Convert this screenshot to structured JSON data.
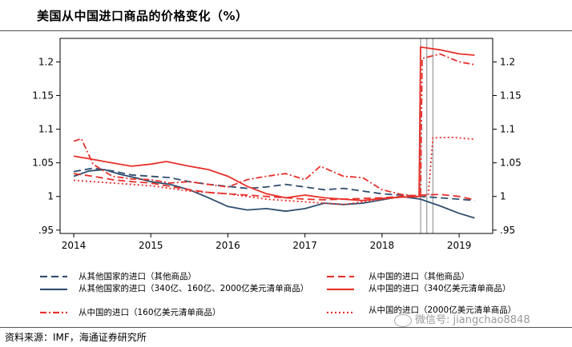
{
  "header": {
    "title": "美国从中国进口商品的价格变化（%）"
  },
  "footer": {
    "source": "资料来源：IMF，海通证券研究所",
    "watermark": "微信号: jiangchao8848"
  },
  "chart_data": {
    "type": "line",
    "title": "美国从中国进口商品的价格变化（%）",
    "x_ticks": [
      2014,
      2015,
      2016,
      2017,
      2018,
      2019
    ],
    "xlim": [
      2014,
      2019.3
    ],
    "ylim": [
      0.945,
      1.235
    ],
    "y_ticks": [
      0.95,
      1,
      1.05,
      1.1,
      1.15,
      1.2
    ],
    "y_tick_labels": [
      ".95",
      "1",
      "1.05",
      "1.1",
      "1.15",
      "1.2"
    ],
    "dual_axis": true,
    "vertical_markers": [
      2018.5,
      2018.58,
      2018.66
    ],
    "series": [
      {
        "name": "从其他国家的进口（其他商品）",
        "color": "#2f4e6f",
        "dash": "long-dash",
        "points": [
          [
            2014,
            1.037
          ],
          [
            2014.25,
            1.042
          ],
          [
            2014.5,
            1.038
          ],
          [
            2014.75,
            1.032
          ],
          [
            2015,
            1.03
          ],
          [
            2015.25,
            1.028
          ],
          [
            2015.5,
            1.022
          ],
          [
            2015.75,
            1.018
          ],
          [
            2016,
            1.015
          ],
          [
            2016.25,
            1.012
          ],
          [
            2016.5,
            1.014
          ],
          [
            2016.75,
            1.018
          ],
          [
            2017,
            1.014
          ],
          [
            2017.25,
            1.01
          ],
          [
            2017.5,
            1.012
          ],
          [
            2017.75,
            1.008
          ],
          [
            2018,
            1.004
          ],
          [
            2018.25,
            1.002
          ],
          [
            2018.5,
            1.0
          ],
          [
            2018.75,
            0.998
          ],
          [
            2019,
            0.996
          ],
          [
            2019.2,
            0.994
          ]
        ]
      },
      {
        "name": "从其他国家的进口（340亿、160亿、2000亿美元清单商品）",
        "color": "#2f4e6f",
        "dash": "solid",
        "points": [
          [
            2014,
            1.03
          ],
          [
            2014.2,
            1.038
          ],
          [
            2014.4,
            1.04
          ],
          [
            2014.6,
            1.033
          ],
          [
            2014.8,
            1.028
          ],
          [
            2015,
            1.022
          ],
          [
            2015.25,
            1.018
          ],
          [
            2015.5,
            1.01
          ],
          [
            2015.75,
            0.998
          ],
          [
            2016,
            0.985
          ],
          [
            2016.25,
            0.98
          ],
          [
            2016.5,
            0.982
          ],
          [
            2016.75,
            0.978
          ],
          [
            2017,
            0.982
          ],
          [
            2017.25,
            0.99
          ],
          [
            2017.5,
            0.988
          ],
          [
            2017.75,
            0.99
          ],
          [
            2018,
            0.995
          ],
          [
            2018.25,
            1.0
          ],
          [
            2018.5,
            0.996
          ],
          [
            2018.75,
            0.986
          ],
          [
            2019,
            0.975
          ],
          [
            2019.2,
            0.968
          ]
        ]
      },
      {
        "name": "从中国的进口（160亿美元清单商品）",
        "color": "#e8302a",
        "dash": "dash-dot",
        "points": [
          [
            2014,
            1.082
          ],
          [
            2014.1,
            1.086
          ],
          [
            2014.25,
            1.048
          ],
          [
            2014.5,
            1.03
          ],
          [
            2014.75,
            1.026
          ],
          [
            2015,
            1.025
          ],
          [
            2015.25,
            1.02
          ],
          [
            2015.5,
            1.022
          ],
          [
            2015.75,
            1.018
          ],
          [
            2016,
            1.014
          ],
          [
            2016.25,
            1.025
          ],
          [
            2016.5,
            1.03
          ],
          [
            2016.75,
            1.034
          ],
          [
            2017,
            1.025
          ],
          [
            2017.2,
            1.045
          ],
          [
            2017.5,
            1.03
          ],
          [
            2017.75,
            1.028
          ],
          [
            2018,
            1.01
          ],
          [
            2018.25,
            1.003
          ],
          [
            2018.5,
            1.0
          ],
          [
            2018.52,
            1.205
          ],
          [
            2018.75,
            1.212
          ],
          [
            2019,
            1.2
          ],
          [
            2019.2,
            1.196
          ]
        ]
      },
      {
        "name": "从中国的进口（其他商品）",
        "color": "#e8302a",
        "dash": "long-dash",
        "points": [
          [
            2014,
            1.034
          ],
          [
            2014.25,
            1.03
          ],
          [
            2014.5,
            1.025
          ],
          [
            2014.75,
            1.022
          ],
          [
            2015,
            1.02
          ],
          [
            2015.25,
            1.015
          ],
          [
            2015.5,
            1.01
          ],
          [
            2015.75,
            1.006
          ],
          [
            2016,
            1.004
          ],
          [
            2016.25,
            1.002
          ],
          [
            2016.5,
            1.0
          ],
          [
            2016.75,
            0.998
          ],
          [
            2017,
            0.996
          ],
          [
            2017.25,
            0.995
          ],
          [
            2017.5,
            0.996
          ],
          [
            2017.75,
            0.997
          ],
          [
            2018,
            0.998
          ],
          [
            2018.25,
            1.0
          ],
          [
            2018.5,
            1.002
          ],
          [
            2018.75,
            1.003
          ],
          [
            2019,
            1.0
          ],
          [
            2019.2,
            0.995
          ]
        ]
      },
      {
        "name": "从中国的进口（340亿美元清单商品）",
        "color": "#e8302a",
        "dash": "solid",
        "points": [
          [
            2014,
            1.06
          ],
          [
            2014.25,
            1.055
          ],
          [
            2014.5,
            1.05
          ],
          [
            2014.75,
            1.045
          ],
          [
            2015,
            1.048
          ],
          [
            2015.2,
            1.052
          ],
          [
            2015.5,
            1.045
          ],
          [
            2015.75,
            1.04
          ],
          [
            2016,
            1.03
          ],
          [
            2016.25,
            1.015
          ],
          [
            2016.5,
            1.004
          ],
          [
            2016.75,
            0.998
          ],
          [
            2017,
            1.002
          ],
          [
            2017.25,
            0.998
          ],
          [
            2017.5,
            0.996
          ],
          [
            2017.75,
            0.994
          ],
          [
            2018,
            0.997
          ],
          [
            2018.25,
            0.999
          ],
          [
            2018.48,
            1.0
          ],
          [
            2018.5,
            1.222
          ],
          [
            2018.75,
            1.218
          ],
          [
            2019,
            1.212
          ],
          [
            2019.2,
            1.21
          ]
        ]
      },
      {
        "name": "从中国的进口（2000亿美元清单商品）",
        "color": "#e8302a",
        "dash": "dot",
        "points": [
          [
            2014,
            1.024
          ],
          [
            2014.25,
            1.022
          ],
          [
            2014.5,
            1.02
          ],
          [
            2014.75,
            1.018
          ],
          [
            2015,
            1.016
          ],
          [
            2015.25,
            1.012
          ],
          [
            2015.5,
            1.008
          ],
          [
            2015.75,
            1.006
          ],
          [
            2016,
            1.004
          ],
          [
            2016.25,
            1.0
          ],
          [
            2016.5,
            0.996
          ],
          [
            2016.75,
            0.994
          ],
          [
            2017,
            0.992
          ],
          [
            2017.25,
            0.99
          ],
          [
            2017.5,
            0.988
          ],
          [
            2017.75,
            0.992
          ],
          [
            2018,
            0.996
          ],
          [
            2018.25,
            0.999
          ],
          [
            2018.5,
            1.0
          ],
          [
            2018.6,
            1.002
          ],
          [
            2018.66,
            1.087
          ],
          [
            2018.9,
            1.088
          ],
          [
            2019.2,
            1.085
          ]
        ]
      }
    ]
  }
}
